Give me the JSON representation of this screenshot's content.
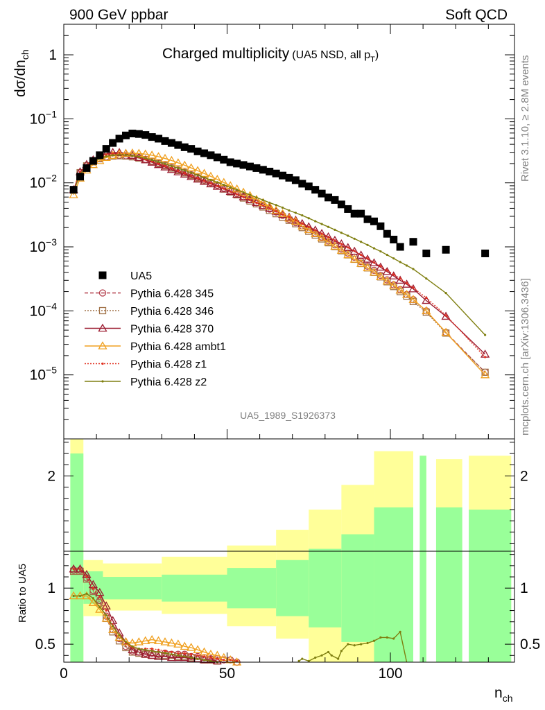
{
  "header": {
    "left": "900 GeV ppbar",
    "right": "Soft QCD"
  },
  "side_labels": {
    "rivet": "Rivet 3.1.10, ≥ 2.8M events",
    "mcplots": "mcplots.cern.ch [arXiv:1306.3436]"
  },
  "plot_title": {
    "main": "Charged multiplicity",
    "sub": "(UA5 NSD, all p",
    "sub_index": "T",
    "sub_close": ")"
  },
  "analysis_id": "UA5_1989_S1926373",
  "chart_data": {
    "type": "scatter",
    "x_axis": {
      "label_main": "n",
      "label_sub": "ch",
      "lim": [
        0,
        138
      ],
      "ticks": [
        0,
        50,
        100
      ]
    },
    "main_panel": {
      "y_label_main": "dσ/dn",
      "y_label_sub": "ch",
      "scale": "log",
      "ylim": [
        1e-06,
        3
      ],
      "tick_labels": [
        {
          "value": 1,
          "base": "1",
          "exp": ""
        },
        {
          "value": 0.1,
          "base": "10",
          "exp": "−1"
        },
        {
          "value": 0.01,
          "base": "10",
          "exp": "−2"
        },
        {
          "value": 0.001,
          "base": "10",
          "exp": "−3"
        },
        {
          "value": 0.0001,
          "base": "10",
          "exp": "−4"
        },
        {
          "value": 1e-05,
          "base": "10",
          "exp": "−5"
        }
      ]
    },
    "ratio_panel": {
      "y_label": "Ratio to UA5",
      "ylim": [
        0.34,
        2.33
      ],
      "ticks": [
        0.5,
        1,
        2
      ],
      "tick_labels": [
        "0.5",
        "1",
        "2"
      ],
      "bands": [
        {
          "x0": 2,
          "x1": 6,
          "yellow": [
            0.34,
            2.33
          ],
          "green": [
            0.34,
            2.2
          ]
        },
        {
          "x0": 6,
          "x1": 12,
          "yellow": [
            0.75,
            1.25
          ],
          "green": [
            0.86,
            1.15
          ]
        },
        {
          "x0": 12,
          "x1": 30,
          "yellow": [
            0.8,
            1.22
          ],
          "green": [
            0.9,
            1.1
          ]
        },
        {
          "x0": 30,
          "x1": 50,
          "yellow": [
            0.77,
            1.28
          ],
          "green": [
            0.88,
            1.12
          ]
        },
        {
          "x0": 50,
          "x1": 65,
          "yellow": [
            0.66,
            1.38
          ],
          "green": [
            0.82,
            1.18
          ]
        },
        {
          "x0": 65,
          "x1": 75,
          "yellow": [
            0.55,
            1.52
          ],
          "green": [
            0.75,
            1.25
          ]
        },
        {
          "x0": 75,
          "x1": 85,
          "yellow": [
            0.34,
            1.7
          ],
          "green": [
            0.65,
            1.35
          ]
        },
        {
          "x0": 85,
          "x1": 95,
          "yellow": [
            0.34,
            1.92
          ],
          "green": [
            0.52,
            1.48
          ]
        },
        {
          "x0": 95,
          "x1": 107,
          "yellow": [
            0.34,
            2.22
          ],
          "green": [
            0.34,
            1.72
          ]
        },
        {
          "x0": 109,
          "x1": 111,
          "yellow": [
            0.34,
            2.18
          ],
          "green": [
            0.34,
            2.18
          ]
        },
        {
          "x0": 114,
          "x1": 122,
          "yellow": [
            0.34,
            2.15
          ],
          "green": [
            0.34,
            1.72
          ]
        },
        {
          "x0": 124,
          "x1": 137,
          "yellow": [
            0.34,
            2.18
          ],
          "green": [
            0.34,
            1.7
          ]
        }
      ]
    },
    "data": {
      "name": "UA5",
      "x": [
        3,
        5,
        7,
        9,
        11,
        13,
        15,
        17,
        19,
        21,
        23,
        25,
        27,
        29,
        31,
        33,
        35,
        37,
        39,
        41,
        43,
        45,
        47,
        49,
        51,
        53,
        55,
        57,
        59,
        61,
        63,
        65,
        67,
        69,
        71,
        73,
        75,
        77,
        79,
        81,
        83,
        85,
        87,
        89,
        91,
        93,
        95,
        97,
        99,
        101,
        103,
        107,
        111,
        117,
        129
      ],
      "y": [
        0.0078,
        0.0125,
        0.017,
        0.022,
        0.027,
        0.034,
        0.042,
        0.049,
        0.055,
        0.059,
        0.058,
        0.056,
        0.052,
        0.049,
        0.045,
        0.042,
        0.039,
        0.036,
        0.034,
        0.031,
        0.029,
        0.027,
        0.025,
        0.023,
        0.021,
        0.02,
        0.019,
        0.018,
        0.017,
        0.016,
        0.015,
        0.014,
        0.013,
        0.012,
        0.011,
        0.0097,
        0.0088,
        0.0078,
        0.0068,
        0.0059,
        0.0054,
        0.0046,
        0.0039,
        0.0033,
        0.0033,
        0.0027,
        0.0025,
        0.0021,
        0.0016,
        0.0013,
        0.001,
        0.0012,
        0.00079,
        0.0009,
        0.00079
      ]
    },
    "mc_x": [
      3,
      5,
      7,
      9,
      11,
      13,
      15,
      17,
      19,
      21,
      23,
      25,
      27,
      29,
      31,
      33,
      35,
      37,
      39,
      41,
      43,
      45,
      47,
      49,
      51,
      53,
      55,
      57,
      59,
      61,
      63,
      65,
      67,
      69,
      71,
      73,
      75,
      77,
      79,
      81,
      83,
      85,
      87,
      89,
      91,
      93,
      95,
      97,
      99,
      101,
      103,
      105,
      107,
      111,
      117,
      129
    ],
    "series": [
      {
        "name": "Pythia 6.428 345",
        "color": "#b23a48",
        "marker": "circle",
        "dash": "5,3",
        "y": [
          0.0078,
          0.0145,
          0.0185,
          0.0215,
          0.024,
          0.0255,
          0.0265,
          0.0268,
          0.0265,
          0.0258,
          0.0247,
          0.0233,
          0.0218,
          0.0203,
          0.0188,
          0.0173,
          0.0159,
          0.0146,
          0.0134,
          0.0122,
          0.0111,
          0.0101,
          0.0092,
          0.0083,
          0.0075,
          0.0068,
          0.0061,
          0.0055,
          0.0049,
          0.0044,
          0.0039,
          0.0035,
          0.0031,
          0.0027,
          0.0024,
          0.00212,
          0.00186,
          0.00163,
          0.00142,
          0.00124,
          0.00108,
          0.00093,
          0.0008,
          0.00069,
          0.00059,
          0.0005,
          0.00043,
          0.00036,
          0.000305,
          0.000255,
          0.000215,
          0.00018,
          0.00015,
          0.0001,
          4.6e-05,
          1.1e-05
        ],
        "ratio": [
          1.16,
          1.16,
          1.09,
          0.98,
          0.89,
          0.75,
          0.63,
          0.55,
          0.48,
          0.44,
          0.43,
          0.42,
          0.42,
          0.41,
          0.42,
          0.41,
          0.41,
          0.41,
          0.39,
          0.39,
          0.38,
          0.37,
          0.37,
          0.36,
          0.36,
          0.34
        ]
      },
      {
        "name": "Pythia 6.428 346",
        "color": "#a2744a",
        "marker": "square",
        "dash": "2,2",
        "y": [
          0.0077,
          0.0144,
          0.0184,
          0.0213,
          0.0238,
          0.0253,
          0.0262,
          0.0265,
          0.0262,
          0.0255,
          0.0244,
          0.023,
          0.0215,
          0.02,
          0.0185,
          0.017,
          0.0156,
          0.0143,
          0.0131,
          0.0119,
          0.0108,
          0.0098,
          0.0089,
          0.008,
          0.0072,
          0.0065,
          0.0058,
          0.0052,
          0.0047,
          0.0042,
          0.0037,
          0.0033,
          0.0029,
          0.0026,
          0.0023,
          0.002,
          0.00175,
          0.00153,
          0.00133,
          0.00116,
          0.00101,
          0.00087,
          0.00075,
          0.00064,
          0.00055,
          0.00047,
          0.0004,
          0.00034,
          0.000285,
          0.00024,
          0.0002,
          0.00017,
          0.00014,
          9.5e-05,
          4.5e-05,
          1.1e-05
        ],
        "ratio": [
          1.15,
          1.15,
          1.08,
          0.97,
          0.87,
          0.73,
          0.61,
          0.53,
          0.47,
          0.43,
          0.42,
          0.41,
          0.4,
          0.4,
          0.4,
          0.4,
          0.39,
          0.39,
          0.38,
          0.37,
          0.36,
          0.36,
          0.35
        ]
      },
      {
        "name": "Pythia 6.428 370",
        "color": "#9b1b30",
        "marker": "triangle",
        "dash": "",
        "y": [
          0.0078,
          0.0148,
          0.0193,
          0.0228,
          0.026,
          0.0285,
          0.0298,
          0.0297,
          0.0285,
          0.0268,
          0.0248,
          0.0228,
          0.0209,
          0.0192,
          0.0176,
          0.0161,
          0.0148,
          0.0136,
          0.0125,
          0.0114,
          0.0105,
          0.0096,
          0.0088,
          0.008,
          0.0073,
          0.0066,
          0.006,
          0.0054,
          0.0049,
          0.0044,
          0.004,
          0.0036,
          0.0032,
          0.0029,
          0.0026,
          0.0023,
          0.00205,
          0.00182,
          0.00161,
          0.00143,
          0.00126,
          0.00111,
          0.00097,
          0.00085,
          0.00074,
          0.00064,
          0.00056,
          0.00048,
          0.00041,
          0.00035,
          0.0003,
          0.00026,
          0.00022,
          0.000145,
          8.2e-05,
          2.1e-05
        ],
        "ratio": [
          1.17,
          1.17,
          1.12,
          1.03,
          0.96,
          0.84,
          0.71,
          0.6,
          0.52,
          0.45,
          0.43,
          0.41,
          0.4,
          0.39,
          0.39,
          0.38,
          0.38,
          0.38,
          0.37,
          0.37,
          0.36,
          0.36,
          0.35
        ]
      },
      {
        "name": "Pythia 6.428 ambt1",
        "color": "#f0a020",
        "marker": "triangle",
        "dash": "",
        "y": [
          0.0065,
          0.0118,
          0.0158,
          0.0192,
          0.0222,
          0.0248,
          0.0268,
          0.0281,
          0.0289,
          0.0291,
          0.0288,
          0.0281,
          0.027,
          0.0256,
          0.024,
          0.0223,
          0.0205,
          0.0188,
          0.0171,
          0.0155,
          0.014,
          0.0126,
          0.0113,
          0.0101,
          0.009,
          0.008,
          0.0071,
          0.0063,
          0.0055,
          0.0049,
          0.0043,
          0.0037,
          0.0033,
          0.0028,
          0.0025,
          0.0021,
          0.00185,
          0.0016,
          0.00138,
          0.00119,
          0.00102,
          0.00088,
          0.00075,
          0.00064,
          0.00055,
          0.00047,
          0.0004,
          0.00034,
          0.00029,
          0.00025,
          0.00021,
          0.00018,
          0.00015,
          0.0001,
          4.6e-05,
          1e-05
        ],
        "ratio": [
          0.93,
          0.93,
          0.93,
          0.87,
          0.81,
          0.73,
          0.63,
          0.56,
          0.52,
          0.51,
          0.52,
          0.53,
          0.54,
          0.53,
          0.52,
          0.51,
          0.5,
          0.48,
          0.47,
          0.45,
          0.43,
          0.41,
          0.4,
          0.38,
          0.36,
          0.34
        ]
      },
      {
        "name": "Pythia 6.428 z1",
        "color": "#e03020",
        "marker": "dot",
        "dash": "2,2",
        "y": [
          0.0078,
          0.0148,
          0.019,
          0.0225,
          0.0255,
          0.0275,
          0.0285,
          0.0285,
          0.0277,
          0.0265,
          0.0249,
          0.0232,
          0.0215,
          0.0199,
          0.0183,
          0.0168,
          0.0154,
          0.0141,
          0.0129,
          0.0118,
          0.0107,
          0.0098,
          0.0089,
          0.0081,
          0.0073,
          0.0066,
          0.006,
          0.0054,
          0.0049,
          0.0044,
          0.004,
          0.0036,
          0.0032,
          0.0029,
          0.0026,
          0.0023,
          0.00205,
          0.00182,
          0.00161,
          0.00143,
          0.00126,
          0.00111,
          0.00098,
          0.00086,
          0.00075,
          0.00066,
          0.00057,
          0.0005,
          0.00043,
          0.00037,
          0.00032,
          0.00027,
          0.00023,
          0.00016,
          8.5e-05,
          1.9e-05
        ],
        "ratio": [
          1.17,
          1.17,
          1.1,
          1.0,
          0.92,
          0.8,
          0.67,
          0.58,
          0.51,
          0.47,
          0.46,
          0.46,
          0.46,
          0.45,
          0.44,
          0.43,
          0.42,
          0.42,
          0.41,
          0.4,
          0.39,
          0.38,
          0.37,
          0.36,
          0.36,
          0.35
        ]
      },
      {
        "name": "Pythia 6.428 z2",
        "color": "#7f7f10",
        "marker": "dot",
        "dash": "",
        "y": [
          0.0072,
          0.0138,
          0.0178,
          0.021,
          0.0238,
          0.0258,
          0.027,
          0.0275,
          0.0273,
          0.0266,
          0.0255,
          0.0242,
          0.0228,
          0.0213,
          0.0198,
          0.0183,
          0.0169,
          0.0156,
          0.0144,
          0.0132,
          0.0121,
          0.0111,
          0.0102,
          0.0093,
          0.0085,
          0.0078,
          0.0071,
          0.0065,
          0.0059,
          0.0054,
          0.0049,
          0.0045,
          0.0041,
          0.0037,
          0.0034,
          0.0031,
          0.0028,
          0.00252,
          0.00227,
          0.00205,
          0.00185,
          0.00166,
          0.00149,
          0.00134,
          0.0012,
          0.00107,
          0.00095,
          0.00085,
          0.00075,
          0.00066,
          0.00058,
          0.00051,
          0.00045,
          0.00032,
          0.00019,
          4.2e-05
        ],
        "ratio": [
          0.93,
          0.93,
          0.95,
          0.91,
          0.83,
          0.76,
          0.66,
          0.58,
          0.52,
          0.48,
          0.46,
          0.45,
          0.44,
          0.43,
          0.42,
          0.41,
          0.4,
          0.39,
          0.38,
          0.37,
          0.36,
          0.35,
          0.34
        ],
        "ratio_tail_x": [
          72,
          73,
          75,
          77,
          79,
          81,
          82,
          84,
          85,
          87,
          89,
          91,
          93,
          95,
          97,
          99,
          101,
          103
        ],
        "ratio_tail_y": [
          0.35,
          0.37,
          0.35,
          0.38,
          0.4,
          0.43,
          0.4,
          0.37,
          0.44,
          0.5,
          0.49,
          0.5,
          0.51,
          0.53,
          0.56,
          0.56,
          0.55,
          0.61
        ]
      }
    ],
    "legend_position": "lower-left"
  }
}
